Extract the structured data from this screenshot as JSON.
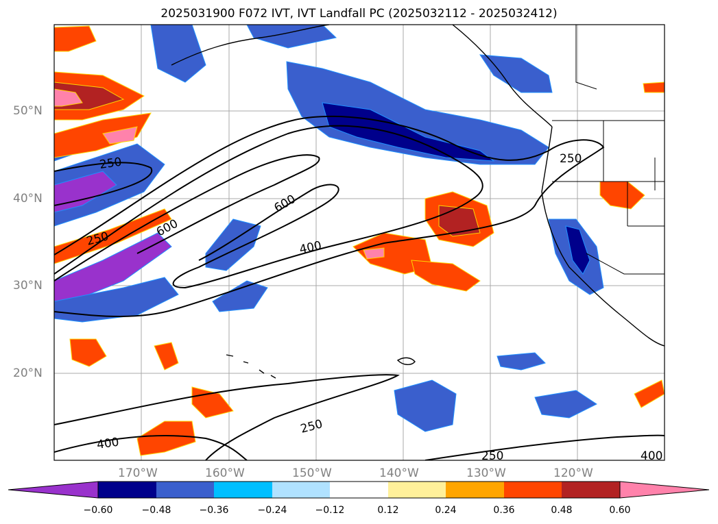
{
  "title": "2025031900 F072 IVT, IVT Landfall PC (2025032112 - 2025032412)",
  "map": {
    "lon_labels": [
      "170°W",
      "160°W",
      "150°W",
      "140°W",
      "130°W",
      "120°W"
    ],
    "lat_labels": [
      "50°N",
      "40°N",
      "30°N",
      "20°N"
    ],
    "contour_labels": [
      "250",
      "600",
      "250",
      "600",
      "400",
      "250",
      "250",
      "400",
      "250",
      "400"
    ],
    "feature_colors": {
      "coastline": "#000000",
      "borders": "#000000",
      "gridlines": "#a9a9a9",
      "ivt_contours": "#000000"
    }
  },
  "colorbar": {
    "levels": [
      -0.6,
      -0.48,
      -0.36,
      -0.24,
      -0.12,
      0.12,
      0.24,
      0.36,
      0.48,
      0.6
    ],
    "tick_labels": [
      "−0.60",
      "−0.48",
      "−0.36",
      "−0.24",
      "−0.12",
      "0.12",
      "0.24",
      "0.36",
      "0.48",
      "0.60"
    ],
    "colors": [
      "#9932cc",
      "#00008b",
      "#3a5fcd",
      "#00bfff",
      "#b0e2ff",
      "#ffffff",
      "#fff09a",
      "#ffa500",
      "#ff4500",
      "#b22222",
      "#ff82ab"
    ]
  }
}
